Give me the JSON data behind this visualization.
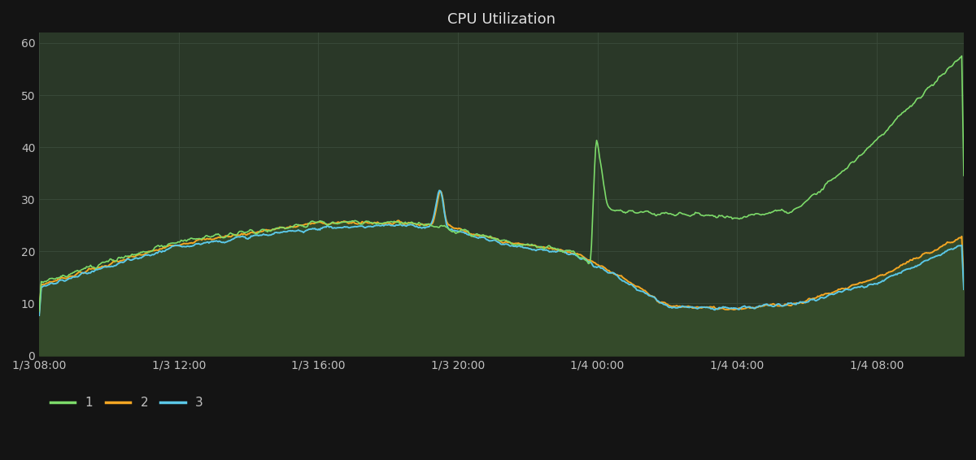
{
  "title": "CPU Utilization",
  "bg_color": "#141414",
  "plot_bg_color": "#2a3828",
  "grid_color": "#3d4d3d",
  "title_color": "#e0e0e0",
  "tick_color": "#c0c0c0",
  "line1_color": "#7ddb6a",
  "line2_color": "#f5a623",
  "line3_color": "#5bc8e8",
  "fill_color": "#344a2a",
  "ylim": [
    0,
    62
  ],
  "yticks": [
    0,
    10,
    20,
    30,
    40,
    50,
    60
  ],
  "xtick_labels": [
    "1/3 08:00",
    "1/3 12:00",
    "1/3 16:00",
    "1/3 20:00",
    "1/4 00:00",
    "1/4 04:00",
    "1/4 08:00"
  ],
  "legend_labels": [
    "1",
    "2",
    "3"
  ],
  "n_points": 900,
  "total_hours": 26.5,
  "tick_hours": [
    0,
    4,
    8,
    12,
    16,
    20,
    24
  ]
}
